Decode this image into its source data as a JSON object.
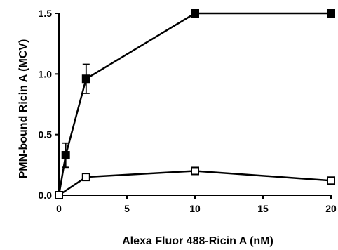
{
  "chart_data": {
    "type": "line",
    "title": "",
    "xlabel": "Alexa Fluor 488-Ricin A (nM)",
    "ylabel": "PMN-bound Ricin A (MCV)",
    "xlim": [
      0,
      20
    ],
    "ylim": [
      0,
      1.5
    ],
    "xticks": [
      "0",
      "5",
      "10",
      "15",
      "20"
    ],
    "yticks": [
      "0.0",
      "0.5",
      "1.0",
      "1.5"
    ],
    "grid": false,
    "legend": "none",
    "series": [
      {
        "marker": "filled-square",
        "color": "#000000",
        "x": [
          0,
          0.5,
          2,
          10,
          20
        ],
        "y": [
          0.0,
          0.33,
          0.96,
          1.5,
          1.5
        ],
        "error": [
          0,
          0.1,
          0.12,
          0,
          0
        ]
      },
      {
        "marker": "open-square",
        "color": "#000000",
        "x": [
          0,
          2,
          10,
          20
        ],
        "y": [
          0.0,
          0.15,
          0.2,
          0.12
        ],
        "error": [
          0,
          0,
          0,
          0
        ]
      }
    ]
  }
}
